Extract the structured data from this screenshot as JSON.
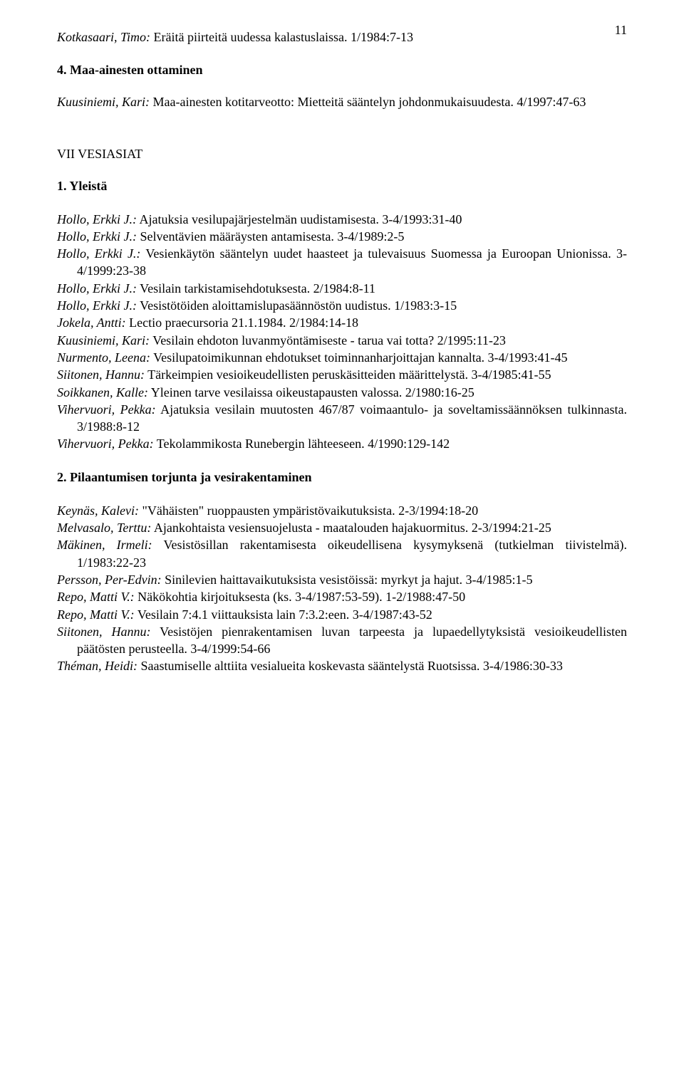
{
  "page_number": "11",
  "top_entry": {
    "author": "Kotkasaari, Timo:",
    "title": " Eräitä piirteitä uudessa kalastuslaissa. 1/1984:7-13"
  },
  "section4": {
    "heading": "4. Maa-ainesten ottaminen",
    "entry": {
      "author": "Kuusiniemi, Kari:",
      "title": " Maa-ainesten kotitarveotto: Mietteitä sääntelyn johdonmukaisuudesta. 4/1997:47-63"
    }
  },
  "vii": {
    "heading": "VII VESIASIAT",
    "sub": {
      "heading": "1. Yleistä",
      "entries": [
        {
          "author": "Hollo, Erkki J.:",
          "title": " Ajatuksia vesilupajärjestelmän uudistamisesta. 3-4/1993:31-40"
        },
        {
          "author": "Hollo, Erkki J.:",
          "title": " Selventävien määräysten antamisesta. 3-4/1989:2-5"
        },
        {
          "author": "Hollo, Erkki J.:",
          "title": " Vesienkäytön sääntelyn uudet haasteet ja tulevaisuus Suomessa ja Euroopan Unionissa. 3-4/1999:23-38"
        },
        {
          "author": "Hollo, Erkki J.:",
          "title": " Vesilain tarkistamisehdotuksesta. 2/1984:8-11"
        },
        {
          "author": "Hollo, Erkki J.:",
          "title": " Vesistötöiden aloittamislupasäännöstön uudistus. 1/1983:3-15"
        },
        {
          "author": "Jokela, Antti:",
          "title": " Lectio praecursoria 21.1.1984. 2/1984:14-18"
        },
        {
          "author": "Kuusiniemi, Kari:",
          "title": " Vesilain ehdoton luvanmyöntämiseste - tarua vai totta? 2/1995:11-23"
        },
        {
          "author": "Nurmento, Leena:",
          "title": " Vesilupatoimikunnan ehdotukset toiminnanharjoittajan kannalta. 3-4/1993:41-45"
        },
        {
          "author": "Siitonen, Hannu:",
          "title": " Tärkeimpien vesioikeudellisten peruskäsitteiden määrittelystä. 3-4/1985:41-55"
        },
        {
          "author": "Soikkanen, Kalle:",
          "title": " Yleinen tarve vesilaissa oikeustapausten valossa. 2/1980:16-25"
        },
        {
          "author": "Vihervuori, Pekka:",
          "title": " Ajatuksia vesilain muutosten 467/87 voimaantulo- ja soveltamissäännöksen tulkinnasta. 3/1988:8-12"
        },
        {
          "author": "Vihervuori, Pekka:",
          "title": " Tekolammikosta Runebergin lähteeseen. 4/1990:129-142"
        }
      ]
    },
    "sub2": {
      "heading": "2. Pilaantumisen torjunta ja vesirakentaminen",
      "entries": [
        {
          "author": "Keynäs, Kalevi:",
          "title": " \"Vähäisten\" ruoppausten ympäristövaikutuksista. 2-3/1994:18-20"
        },
        {
          "author": "Melvasalo, Terttu:",
          "title": " Ajankohtaista vesiensuojelusta - maatalouden hajakuormitus. 2-3/1994:21-25"
        },
        {
          "author": "Mäkinen, Irmeli:",
          "title": " Vesistösillan rakentamisesta oikeudellisena kysymyksenä (tutkielman tiivistelmä). 1/1983:22-23"
        },
        {
          "author": "Persson, Per-Edvin:",
          "title": " Sinilevien haittavaikutuksista vesistöissä: myrkyt ja hajut. 3-4/1985:1-5"
        },
        {
          "author": "Repo, Matti V.:",
          "title": " Näkökohtia kirjoituksesta (ks. 3-4/1987:53-59). 1-2/1988:47-50"
        },
        {
          "author": "Repo, Matti V.:",
          "title": " Vesilain 7:4.1 viittauksista lain 7:3.2:een. 3-4/1987:43-52"
        },
        {
          "author": "Siitonen, Hannu:",
          "title": " Vesistöjen pienrakentamisen luvan tarpeesta ja lupaedellytyksistä vesioikeudellisten päätösten perusteella. 3-4/1999:54-66"
        },
        {
          "author": "Théman, Heidi:",
          "title": " Saastumiselle alttiita vesialueita koskevasta sääntelystä Ruotsissa. 3-4/1986:30-33"
        }
      ]
    }
  }
}
